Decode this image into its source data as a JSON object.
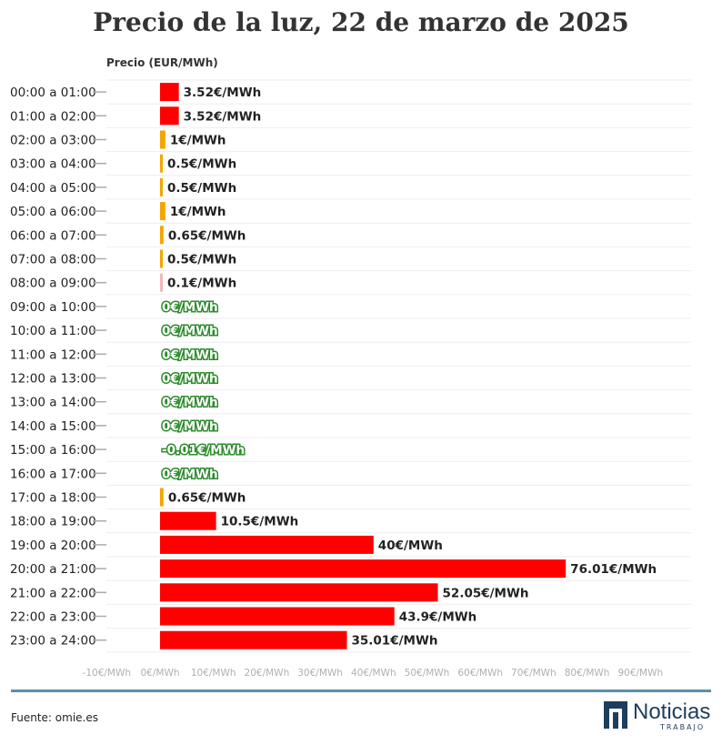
{
  "chart_data": {
    "type": "bar",
    "orientation": "horizontal",
    "title": "Precio de la luz, 22 de marzo de 2025",
    "ylabel": "Precio (EUR/MWh)",
    "xlim": [
      -10,
      95
    ],
    "x_ticks": [
      "-10€/MWh",
      "0€/MWh",
      "10€/MWh",
      "20€/MWh",
      "30€/MWh",
      "40€/MWh",
      "50€/MWh",
      "60€/MWh",
      "70€/MWh",
      "80€/MWh",
      "90€/MWh"
    ],
    "x_tick_values": [
      -10,
      0,
      10,
      20,
      30,
      40,
      50,
      60,
      70,
      80,
      90
    ],
    "grid": true,
    "categories": [
      "00:00 a 01:00",
      "01:00 a 02:00",
      "02:00 a 03:00",
      "03:00 a 04:00",
      "04:00 a 05:00",
      "05:00 a 06:00",
      "06:00 a 07:00",
      "07:00 a 08:00",
      "08:00 a 09:00",
      "09:00 a 10:00",
      "10:00 a 11:00",
      "11:00 a 12:00",
      "12:00 a 13:00",
      "13:00 a 14:00",
      "14:00 a 15:00",
      "15:00 a 16:00",
      "16:00 a 17:00",
      "17:00 a 18:00",
      "18:00 a 19:00",
      "19:00 a 20:00",
      "20:00 a 21:00",
      "21:00 a 22:00",
      "22:00 a 23:00",
      "23:00 a 24:00"
    ],
    "values": [
      3.52,
      3.52,
      1,
      0.5,
      0.5,
      1,
      0.65,
      0.5,
      0.1,
      0,
      0,
      0,
      0,
      0,
      0,
      -0.01,
      0,
      0.65,
      10.5,
      40,
      76.01,
      52.05,
      43.9,
      35.01
    ],
    "labels": [
      "3.52€/MWh",
      "3.52€/MWh",
      "1€/MWh",
      "0.5€/MWh",
      "0.5€/MWh",
      "1€/MWh",
      "0.65€/MWh",
      "0.5€/MWh",
      "0.1€/MWh",
      "0€/MWh",
      "0€/MWh",
      "0€/MWh",
      "0€/MWh",
      "0€/MWh",
      "0€/MWh",
      "-0.01€/MWh",
      "0€/MWh",
      "0.65€/MWh",
      "10.5€/MWh",
      "40€/MWh",
      "76.01€/MWh",
      "52.05€/MWh",
      "43.9€/MWh",
      "35.01€/MWh"
    ],
    "colors": {
      "high": "#ff0000",
      "medium": "#f5a500",
      "low": "#f2b8b8",
      "zero_label": "#2e8b2e",
      "label": "#222222",
      "grid": "#eeeeee",
      "tick": "#b0b0b0"
    }
  },
  "footer": {
    "source": "Fuente: omie.es",
    "logo_name": "Noticias",
    "logo_sub": "TRABAJO",
    "line_color": "#5b8fa8"
  }
}
